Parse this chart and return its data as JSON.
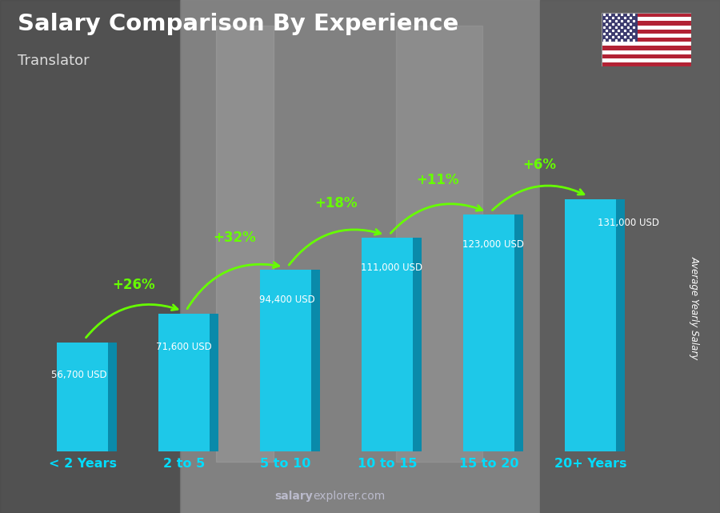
{
  "title": "Salary Comparison By Experience",
  "subtitle": "Translator",
  "categories": [
    "< 2 Years",
    "2 to 5",
    "5 to 10",
    "10 to 15",
    "15 to 20",
    "20+ Years"
  ],
  "values": [
    56700,
    71600,
    94400,
    111000,
    123000,
    131000
  ],
  "value_labels": [
    "56,700 USD",
    "71,600 USD",
    "94,400 USD",
    "111,000 USD",
    "123,000 USD",
    "131,000 USD"
  ],
  "pct_labels": [
    "+26%",
    "+32%",
    "+18%",
    "+11%",
    "+6%"
  ],
  "bar_color_face": "#1EC8E8",
  "bar_color_side": "#0A8AAA",
  "bar_color_top": "#55DFFF",
  "bg_color": "#7A7A7A",
  "title_color": "#FFFFFF",
  "subtitle_color": "#DDDDDD",
  "label_color": "#FFFFFF",
  "pct_color": "#66FF00",
  "cat_color": "#00DDFF",
  "ylabel": "Average Yearly Salary",
  "watermark_bold": "salary",
  "watermark_rest": "explorer.com",
  "ylim_max": 160000,
  "flag_red": "#B22234",
  "flag_blue": "#3C3B6E",
  "flag_white": "#FFFFFF"
}
